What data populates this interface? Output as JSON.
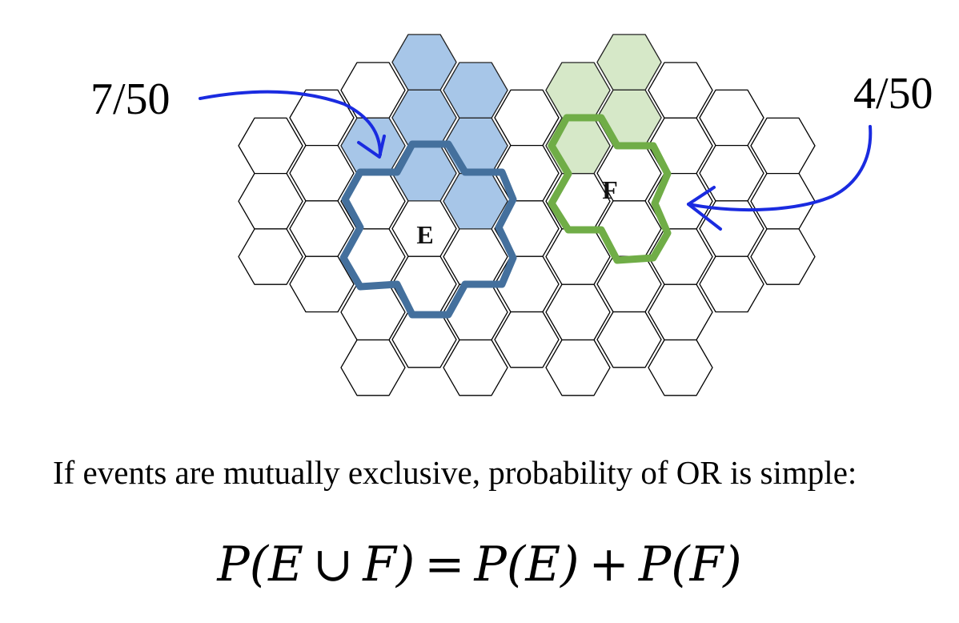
{
  "annotations": {
    "left_fraction": "7/50",
    "right_fraction": "4/50"
  },
  "events": {
    "e_label": "E",
    "f_label": "F",
    "e_cell_count": 7,
    "f_cell_count": 4
  },
  "text": {
    "caption": "If events are mutually exclusive, probability of OR is simple:"
  },
  "formula": {
    "lhs_prefix": "P(",
    "e": "E",
    "union": "∪",
    "f": "F",
    "lhs_suffix": ")",
    "equals": "=",
    "pe": "P(E)",
    "plus": "+",
    "pf": "P(F)"
  },
  "colors": {
    "grid_stroke": "#000000",
    "e_fill": "#a7c6e8",
    "e_outline": "#44709d",
    "f_fill": "#d6e8c8",
    "f_outline": "#70ad47",
    "arrow": "#1a2be0"
  }
}
